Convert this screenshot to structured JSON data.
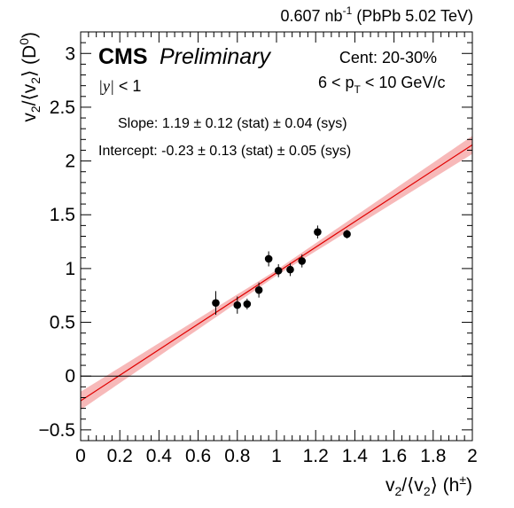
{
  "chart_data": {
    "type": "scatter",
    "header": {
      "lumi_value": "0.607 nb",
      "lumi_exp": "-1",
      "system": " (PbPb 5.02 TeV)"
    },
    "cms_label": "CMS",
    "preliminary_label": "Preliminary",
    "rapidity_label": {
      "sym": "|y|",
      "rest": " < 1"
    },
    "centrality_label": "Cent: 20-30%",
    "pt_label": {
      "pre": "6 < p",
      "sub": "T",
      "post": " < 10 GeV/c"
    },
    "slope_text": "Slope: 1.19 ± 0.12 (stat) ± 0.04 (sys)",
    "intercept_text": "Intercept: -0.23 ± 0.13 (stat) ± 0.05 (sys)",
    "xlabel": {
      "v": "v",
      "sub": "2",
      "mid": "/⟨v",
      "sub2": "2",
      "close": "⟩ (h",
      "sup": "±",
      "end": ")"
    },
    "ylabel": {
      "v": "v",
      "sub": "2",
      "mid": "/⟨v",
      "sub2": "2",
      "close": "⟩ (D",
      "sup": "0",
      "end": ")"
    },
    "xlim": [
      0,
      2
    ],
    "ylim": [
      -0.6,
      3.2
    ],
    "xticks": [
      0,
      0.2,
      0.4,
      0.6,
      0.8,
      1,
      1.2,
      1.4,
      1.6,
      1.8,
      2
    ],
    "xtick_labels": [
      "0",
      "0.2",
      "0.4",
      "0.6",
      "0.8",
      "1",
      "1.2",
      "1.4",
      "1.6",
      "1.8",
      "2"
    ],
    "yticks": [
      -0.5,
      0,
      0.5,
      1,
      1.5,
      2,
      2.5,
      3
    ],
    "ytick_labels": [
      "−0.5",
      "0",
      "0.5",
      "1",
      "1.5",
      "2",
      "2.5",
      "3"
    ],
    "zero_line": 0,
    "fit": {
      "slope": 1.19,
      "intercept": -0.23,
      "band_halfwidth_at_0": 0.075,
      "band_halfwidth_at_2": 0.075,
      "color": "#e00000",
      "band_color": "#f7b9b9"
    },
    "points": [
      {
        "x": 0.69,
        "y": 0.68,
        "err": 0.11
      },
      {
        "x": 0.8,
        "y": 0.66,
        "err": 0.08
      },
      {
        "x": 0.85,
        "y": 0.67,
        "err": 0.05
      },
      {
        "x": 0.91,
        "y": 0.8,
        "err": 0.07
      },
      {
        "x": 0.96,
        "y": 1.09,
        "err": 0.07
      },
      {
        "x": 1.01,
        "y": 0.98,
        "err": 0.06
      },
      {
        "x": 1.07,
        "y": 0.99,
        "err": 0.06
      },
      {
        "x": 1.13,
        "y": 1.07,
        "err": 0.06
      },
      {
        "x": 1.21,
        "y": 1.34,
        "err": 0.06
      },
      {
        "x": 1.36,
        "y": 1.32,
        "err": 0.04
      }
    ],
    "grid": false,
    "legend": "none"
  }
}
